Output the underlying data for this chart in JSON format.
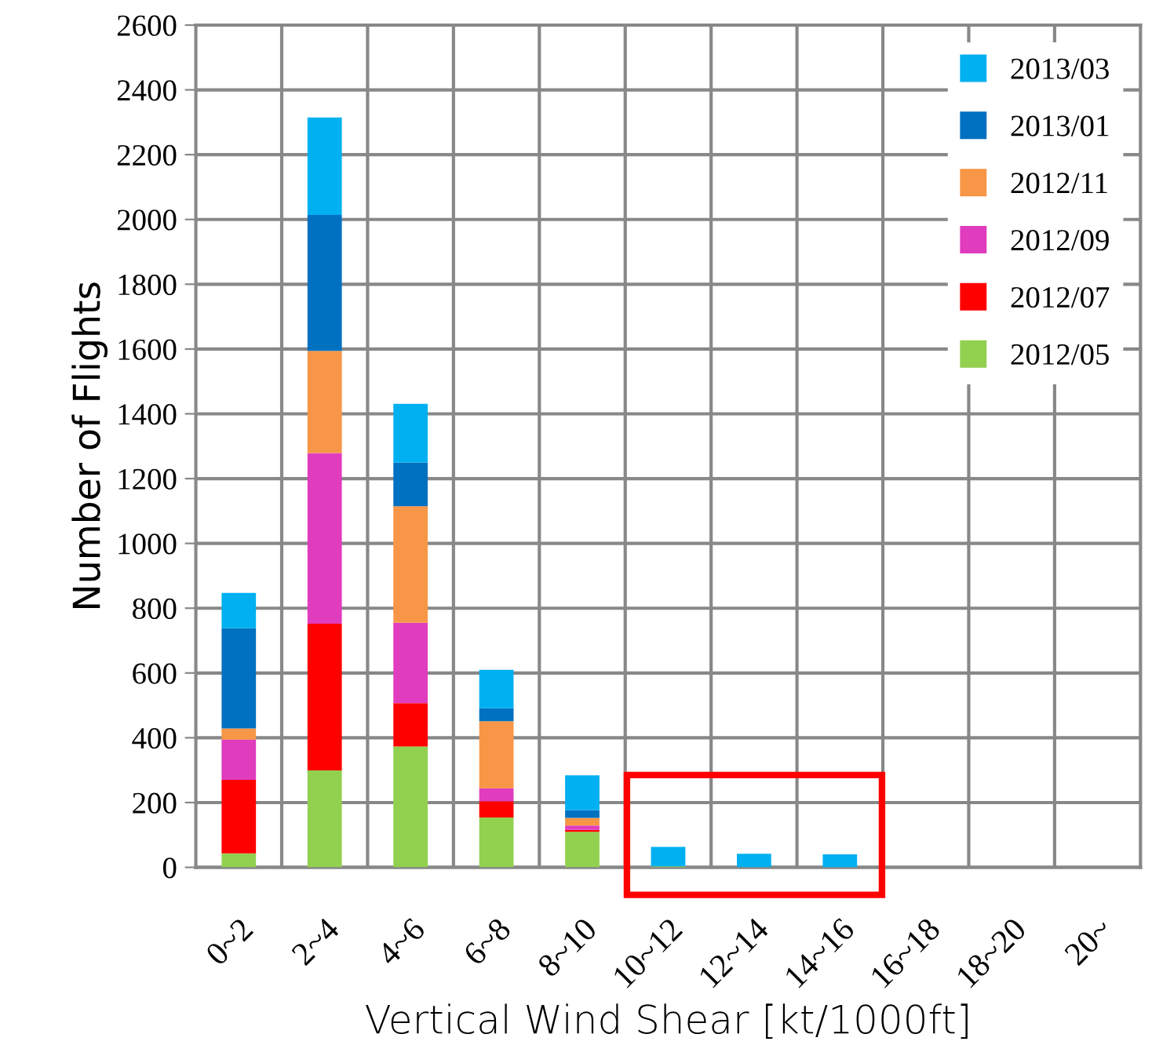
{
  "chart_data": {
    "type": "bar",
    "stacked": true,
    "xlabel": "Vertical Wind Shear [kt/1000ft]",
    "ylabel": "Number of Flights",
    "categories": [
      "0~2",
      "2~4",
      "4~6",
      "6~8",
      "8~10",
      "10~12",
      "12~14",
      "14~16",
      "16~18",
      "18~20",
      "20~"
    ],
    "series": [
      {
        "name": "2012/05",
        "color": "#92d050",
        "values": [
          43,
          299,
          373,
          154,
          110,
          3,
          0,
          0,
          0,
          0,
          0
        ]
      },
      {
        "name": "2012/07",
        "color": "#ff0000",
        "values": [
          227,
          453,
          134,
          50,
          6,
          0,
          0,
          0,
          0,
          0,
          0
        ]
      },
      {
        "name": "2012/09",
        "color": "#e03cbe",
        "values": [
          124,
          527,
          248,
          40,
          13,
          0,
          0,
          0,
          0,
          0,
          0
        ]
      },
      {
        "name": "2012/11",
        "color": "#f79646",
        "values": [
          35,
          315,
          360,
          207,
          24,
          0,
          0,
          0,
          0,
          0,
          0
        ]
      },
      {
        "name": "2013/01",
        "color": "#0070c0",
        "values": [
          309,
          420,
          135,
          40,
          24,
          0,
          0,
          0,
          0,
          0,
          0
        ]
      },
      {
        "name": "2013/03",
        "color": "#00b0f0",
        "values": [
          109,
          301,
          181,
          119,
          107,
          60,
          42,
          40,
          0,
          0,
          0
        ]
      }
    ],
    "ylim": [
      0,
      2600
    ],
    "yticks": [
      0,
      200,
      400,
      600,
      800,
      1000,
      1200,
      1400,
      1600,
      1800,
      2000,
      2200,
      2400,
      2600
    ],
    "grid": true,
    "legend": "top right"
  }
}
